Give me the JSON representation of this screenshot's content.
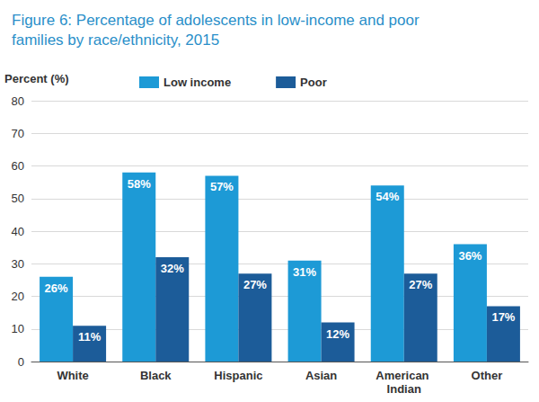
{
  "chart_data": {
    "type": "bar",
    "title": "Figure 6: Percentage of adolescents in low-income and poor families by race/ethnicity, 2015",
    "y_label": "Percent (%)",
    "categories": [
      "White",
      "Black",
      "Hispanic",
      "Asian",
      "American Indian",
      "Other"
    ],
    "series": [
      {
        "name": "Low income",
        "color": "#1d9ad6",
        "values": [
          26,
          58,
          57,
          31,
          54,
          36
        ],
        "value_labels": [
          "26%",
          "58%",
          "57%",
          "31%",
          "54%",
          "36%"
        ]
      },
      {
        "name": "Poor",
        "color": "#1c5c99",
        "values": [
          11,
          32,
          27,
          12,
          27,
          17
        ],
        "value_labels": [
          "11%",
          "32%",
          "27%",
          "12%",
          "27%",
          "17%"
        ]
      }
    ],
    "ylim": [
      0,
      80
    ],
    "yticks": [
      0,
      10,
      20,
      30,
      40,
      50,
      60,
      70,
      80
    ],
    "grid": true,
    "data_labels": true,
    "legend": "top"
  }
}
